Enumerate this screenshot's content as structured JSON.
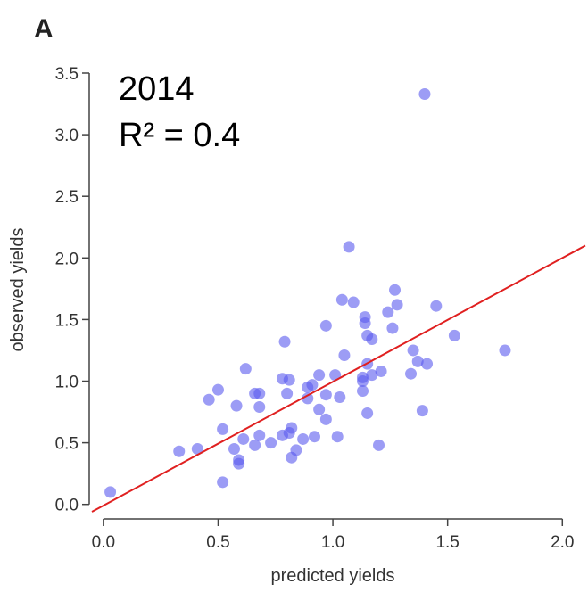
{
  "chart_data": {
    "type": "scatter",
    "title": "A",
    "annotations": [
      "2014",
      "R² = 0.4"
    ],
    "x_label": "predicted yields",
    "y_label": "observed yields",
    "xlim": [
      -0.05,
      2.1
    ],
    "ylim": [
      -0.06,
      3.5
    ],
    "xticks": [
      {
        "value": 0,
        "label": "0.0"
      },
      0.5,
      {
        "value": 1,
        "label": "1.0"
      },
      1.5,
      {
        "value": 2,
        "label": "2.0"
      }
    ],
    "yticks": [
      {
        "value": 0,
        "label": "0.0"
      },
      0.5,
      {
        "value": 1,
        "label": "1.0"
      },
      1.5,
      {
        "value": 2,
        "label": "2.0"
      },
      2.5,
      {
        "value": 3,
        "label": "3.0"
      },
      3.5
    ],
    "color": "#5a5aee",
    "x": [
      0.03,
      0.33,
      0.41,
      0.46,
      0.5,
      0.52,
      0.52,
      0.57,
      0.58,
      0.59,
      0.59,
      0.61,
      0.62,
      0.66,
      0.66,
      0.68,
      0.68,
      0.68,
      0.73,
      0.79,
      0.78,
      0.78,
      0.8,
      0.81,
      0.82,
      0.82,
      0.81,
      0.84,
      0.87,
      0.89,
      0.89,
      0.91,
      0.94,
      0.92,
      0.94,
      0.97,
      0.97,
      1.01,
      1.02,
      1.03,
      1.05,
      0.97,
      1.04,
      1.07,
      1.09,
      1.13,
      1.13,
      1.13,
      1.14,
      1.14,
      1.15,
      1.15,
      1.15,
      1.17,
      1.17,
      1.2,
      1.21,
      1.24,
      1.27,
      1.28,
      1.26,
      1.34,
      1.35,
      1.37,
      1.39,
      1.41,
      1.4,
      1.45,
      1.53,
      1.75
    ],
    "y": [
      0.1,
      0.43,
      0.45,
      0.85,
      0.93,
      0.18,
      0.61,
      0.45,
      0.8,
      0.36,
      0.33,
      0.53,
      1.1,
      0.48,
      0.9,
      0.56,
      0.79,
      0.9,
      0.5,
      1.32,
      0.56,
      1.02,
      0.9,
      1.01,
      0.62,
      0.38,
      0.58,
      0.44,
      0.53,
      0.86,
      0.95,
      0.97,
      0.77,
      0.55,
      1.05,
      0.89,
      0.69,
      1.05,
      0.55,
      0.87,
      1.21,
      1.45,
      1.66,
      2.09,
      1.64,
      1.0,
      0.92,
      1.03,
      1.52,
      1.47,
      1.37,
      1.14,
      0.74,
      1.05,
      1.34,
      0.48,
      1.08,
      1.56,
      1.74,
      1.62,
      1.43,
      1.06,
      1.25,
      1.16,
      0.76,
      1.14,
      3.33,
      1.61,
      1.37,
      1.25
    ],
    "fit_line": {
      "color": "#e02020",
      "x": [
        -0.05,
        2.1
      ],
      "y": [
        -0.06,
        2.1
      ]
    }
  }
}
